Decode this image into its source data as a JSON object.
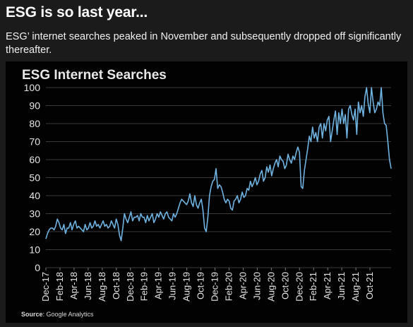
{
  "headline": "ESG is so last year...",
  "subtitle": "ESG’ internet searches peaked in November and subsequently dropped off significantly thereafter.",
  "source_label": "Source",
  "source_text": ": Google Analytics",
  "colors": {
    "background": "#1b1b1b",
    "panel": "#020202",
    "line": "#6fb3e0",
    "grid": "#3a3a3a",
    "text": "#ffffff"
  },
  "chart_data": {
    "type": "line",
    "title": "ESG Internet Searches",
    "xlabel": "",
    "ylabel": "",
    "ylim": [
      0,
      100
    ],
    "yticks": [
      0,
      10,
      20,
      30,
      40,
      50,
      60,
      70,
      80,
      90,
      100
    ],
    "grid": true,
    "x_start": "2017-12",
    "x_end": "2022-01",
    "xticks": [
      "Dec-17",
      "Feb-18",
      "Apr-18",
      "Jun-18",
      "Aug-18",
      "Oct-18",
      "Dec-18",
      "Feb-19",
      "Apr-19",
      "Jun-19",
      "Aug-19",
      "Oct-19",
      "Dec-19",
      "Feb-20",
      "Apr-20",
      "Jun-20",
      "Aug-20",
      "Oct-20",
      "Dec-20",
      "Feb-21",
      "Apr-21",
      "Jun-21",
      "Aug-21",
      "Oct-21"
    ],
    "series": [
      {
        "values": [
          16,
          19,
          21,
          22,
          22,
          21,
          23,
          27,
          25,
          22,
          21,
          24,
          19,
          22,
          22,
          25,
          21,
          24,
          26,
          22,
          23,
          22,
          21,
          20,
          24,
          21,
          22,
          25,
          22,
          23,
          26,
          23,
          24,
          22,
          24,
          26,
          23,
          24,
          22,
          23,
          26,
          24,
          22,
          27,
          24,
          18,
          15,
          22,
          30,
          27,
          25,
          28,
          31,
          26,
          28,
          28,
          29,
          26,
          30,
          28,
          28,
          25,
          29,
          26,
          28,
          30,
          25,
          27,
          30,
          28,
          31,
          29,
          27,
          30,
          31,
          28,
          27,
          26,
          30,
          28,
          30,
          33,
          36,
          38,
          37,
          36,
          35,
          37,
          41,
          36,
          34,
          40,
          35,
          33,
          36,
          38,
          32,
          22,
          20,
          28,
          40,
          45,
          48,
          49,
          55,
          44,
          46,
          45,
          42,
          38,
          36,
          38,
          37,
          33,
          32,
          37,
          38,
          40,
          36,
          38,
          42,
          39,
          40,
          44,
          43,
          48,
          45,
          47,
          50,
          46,
          48,
          52,
          54,
          48,
          50,
          56,
          53,
          57,
          51,
          55,
          58,
          60,
          56,
          62,
          60,
          59,
          55,
          57,
          63,
          60,
          58,
          62,
          60,
          64,
          67,
          64,
          45,
          44,
          54,
          60,
          66,
          73,
          70,
          78,
          72,
          75,
          70,
          78,
          80,
          72,
          80,
          76,
          82,
          84,
          70,
          76,
          82,
          87,
          74,
          86,
          80,
          88,
          80,
          85,
          72,
          88,
          90,
          85,
          82,
          88,
          74,
          92,
          86,
          90,
          84,
          95,
          100,
          91,
          86,
          100,
          92,
          86,
          88,
          92,
          90,
          100,
          86,
          80,
          79,
          70,
          60,
          55
        ]
      }
    ]
  }
}
